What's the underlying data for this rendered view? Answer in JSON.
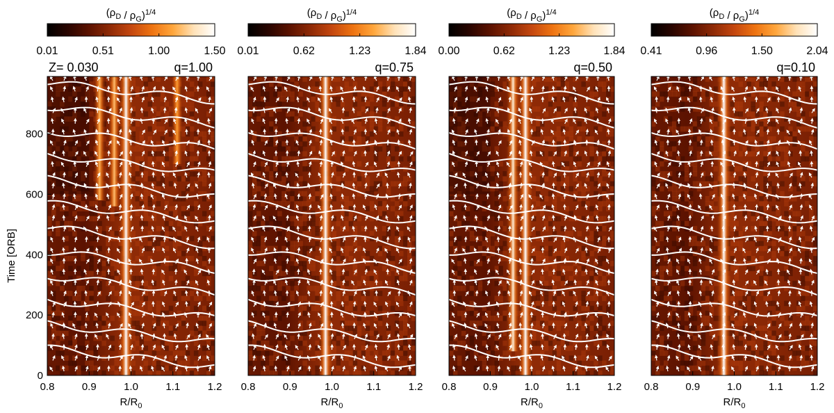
{
  "figure": {
    "ylabel": "Time [ORB]",
    "xlabel": "R/R",
    "xlabel_sub": "0",
    "colorbar_label": {
      "rho": "ρ",
      "num_sub": "D",
      "den_sub": "G",
      "sep": " / ",
      "power": "1/4"
    }
  },
  "colors": {
    "colormap": [
      "#000000",
      "#2a0500",
      "#5c1200",
      "#8f2a06",
      "#c4470f",
      "#ee7311",
      "#ffa63c",
      "#ffe2b8",
      "#ffffff"
    ],
    "overlay": "#ffffff"
  },
  "chart_data": [
    {
      "type": "heatmap",
      "panel_label": "q=1.00",
      "z_label": "Z= 0.030",
      "colorbar_ticks": [
        "0.01",
        "0.51",
        "1.00",
        "1.50"
      ],
      "clim": [
        0.01,
        1.5
      ],
      "xlim": [
        0.8,
        1.2
      ],
      "ylim": [
        0,
        990
      ],
      "xticks": [
        "0.8",
        "0.9",
        "1.0",
        "1.1",
        "1.2"
      ],
      "yticks": [
        "0",
        "200",
        "400",
        "600",
        "800"
      ],
      "bands": [
        {
          "x": 0.925,
          "t_start": 580,
          "strength": 0.55
        },
        {
          "x": 0.96,
          "t_start": 560,
          "strength": 0.6
        },
        {
          "x": 0.988,
          "t_start": 0,
          "strength": 1.0
        },
        {
          "x": 1.11,
          "t_start": 700,
          "strength": 0.45
        }
      ]
    },
    {
      "type": "heatmap",
      "panel_label": "q=0.75",
      "colorbar_ticks": [
        "0.01",
        "0.62",
        "1.23",
        "1.84"
      ],
      "clim": [
        0.01,
        1.84
      ],
      "xlim": [
        0.8,
        1.2
      ],
      "ylim": [
        0,
        990
      ],
      "xticks": [
        "0.8",
        "0.9",
        "1.0",
        "1.1",
        "1.2"
      ],
      "bands": [
        {
          "x": 0.985,
          "t_start": 0,
          "strength": 1.0
        }
      ]
    },
    {
      "type": "heatmap",
      "panel_label": "q=0.50",
      "colorbar_ticks": [
        "0.00",
        "0.62",
        "1.23",
        "1.84"
      ],
      "clim": [
        0.0,
        1.84
      ],
      "xlim": [
        0.8,
        1.2
      ],
      "ylim": [
        0,
        990
      ],
      "xticks": [
        "0.8",
        "0.9",
        "1.0",
        "1.1",
        "1.2"
      ],
      "bands": [
        {
          "x": 0.955,
          "t_start": 80,
          "strength": 0.85
        },
        {
          "x": 0.985,
          "t_start": 0,
          "strength": 1.0
        }
      ]
    },
    {
      "type": "heatmap",
      "panel_label": "q=0.10",
      "colorbar_ticks": [
        "0.41",
        "0.96",
        "1.50",
        "2.04"
      ],
      "clim": [
        0.41,
        2.04
      ],
      "xlim": [
        0.8,
        1.2
      ],
      "ylim": [
        0,
        990
      ],
      "xticks": [
        "0.8",
        "0.9",
        "1.0",
        "1.1",
        "1.2"
      ],
      "bands": [
        {
          "x": 0.975,
          "t_start": 0,
          "strength": 1.0
        }
      ]
    }
  ]
}
